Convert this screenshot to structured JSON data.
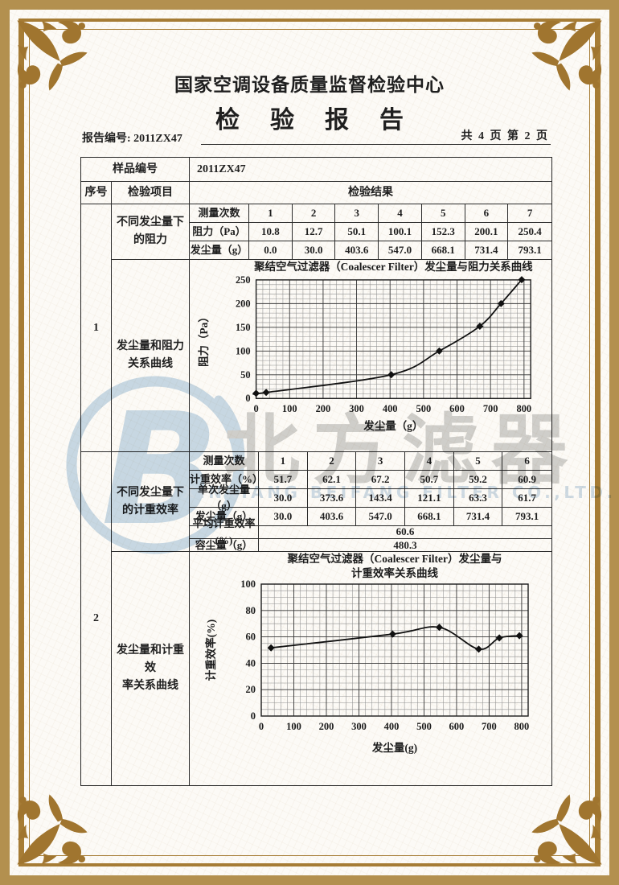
{
  "header": {
    "org_title": "国家空调设备质量监督检验中心",
    "doc_title": "检验报告",
    "report_no_label": "报告编号:",
    "report_no": "2011ZX47",
    "page_info": "共 4 页 第 2 页"
  },
  "table": {
    "sample_label": "样品编号",
    "sample_value": "2011ZX47",
    "col_seq": "序号",
    "col_item": "检验项目",
    "col_result": "检验结果"
  },
  "section1": {
    "seq": "1",
    "item_table": [
      "不同发尘量下",
      "的阻力"
    ],
    "item_chart": [
      "发尘量和阻力",
      "关系曲线"
    ],
    "meas_label": "测量次数",
    "meas_nums": [
      "1",
      "2",
      "3",
      "4",
      "5",
      "6",
      "7"
    ],
    "rows": [
      {
        "label": "阻力（Pa）",
        "values": [
          "10.8",
          "12.7",
          "50.1",
          "100.1",
          "152.3",
          "200.1",
          "250.4"
        ]
      },
      {
        "label": "发尘量（g）",
        "values": [
          "0.0",
          "30.0",
          "403.6",
          "547.0",
          "668.1",
          "731.4",
          "793.1"
        ]
      }
    ]
  },
  "section2": {
    "seq": "2",
    "item_table": [
      "不同发尘量下",
      "的计重效率"
    ],
    "item_chart": [
      "发尘量和计重效",
      "率关系曲线"
    ],
    "meas_label": "测量次数",
    "meas_nums": [
      "1",
      "2",
      "3",
      "4",
      "5",
      "6"
    ],
    "rows": [
      {
        "label": "计重效率（%）",
        "values": [
          "51.7",
          "62.1",
          "67.2",
          "50.7",
          "59.2",
          "60.9"
        ]
      },
      {
        "label": "单次发尘量（g）",
        "values": [
          "30.0",
          "373.6",
          "143.4",
          "121.1",
          "63.3",
          "61.7"
        ]
      },
      {
        "label": "发尘量（g）",
        "values": [
          "30.0",
          "403.6",
          "547.0",
          "668.1",
          "731.4",
          "793.1"
        ]
      }
    ],
    "summary": [
      {
        "label": "平均计重效率(%)",
        "value": "60.6"
      },
      {
        "label": "容尘量（g）",
        "value": "480.3"
      }
    ]
  },
  "watermark": {
    "logo_letter": "B",
    "cn": "北方滤器",
    "en": "XINXIANG BEIFANG FILTER CO.,LTD.",
    "blue": "#a9c6df",
    "gray": "#b7b7b7"
  },
  "chart_data": [
    {
      "type": "line",
      "title": "聚结空气过滤器（Coalescer Filter）发尘量与阻力关系曲线",
      "xlabel": "发尘量（g）",
      "ylabel": "阻力（Pa）",
      "x": [
        0,
        30,
        403.6,
        547,
        668.1,
        731.4,
        793.1
      ],
      "y": [
        10.8,
        12.7,
        50.1,
        100.1,
        152.3,
        200.1,
        250.4
      ],
      "xlim": [
        0,
        820
      ],
      "ylim": [
        0,
        250
      ],
      "xticks": [
        0,
        100,
        200,
        300,
        400,
        500,
        600,
        700,
        800
      ],
      "yticks": [
        0,
        50,
        100,
        150,
        200,
        250
      ],
      "grid": true
    },
    {
      "type": "line",
      "title": "聚结空气过滤器（Coalescer Filter）发尘量与",
      "title2": "计重效率关系曲线",
      "xlabel": "发尘量(g)",
      "ylabel": "计重效率(%)",
      "x": [
        30,
        403.6,
        547,
        668.1,
        731.4,
        793.1
      ],
      "y": [
        51.7,
        62.1,
        67.2,
        50.7,
        59.2,
        60.9
      ],
      "xlim": [
        0,
        820
      ],
      "ylim": [
        0,
        100
      ],
      "xticks": [
        0,
        100,
        200,
        300,
        400,
        500,
        600,
        700,
        800
      ],
      "yticks": [
        0,
        20,
        40,
        60,
        80,
        100
      ],
      "grid": true
    }
  ],
  "colors": {
    "frame_gold": "#a67c35",
    "ornament_gold": "#a0752f",
    "outer_background": "#b3904f",
    "ink": "#1f1f1f"
  }
}
